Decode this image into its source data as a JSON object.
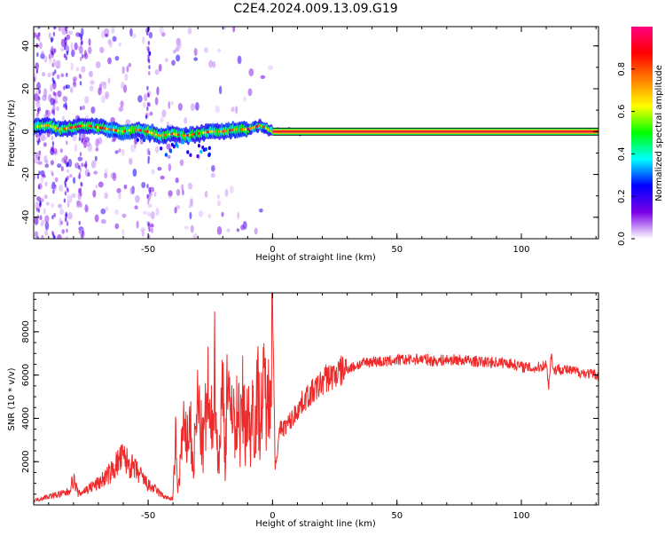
{
  "title": "C2E4.2024.009.13.09.G19",
  "colors": {
    "snr_line": "#ee2a2a",
    "axis": "#000000",
    "carrier_core": "#e0203a"
  },
  "chart_data": [
    {
      "type": "heatmap",
      "name": "spectrogram",
      "xlabel": "Height of straight line (km)",
      "ylabel": "Frequency (Hz)",
      "xlim": [
        -96,
        131
      ],
      "ylim": [
        -50,
        49
      ],
      "x_ticks": [
        -50,
        0,
        50,
        100
      ],
      "y_ticks": [
        -40,
        -20,
        0,
        20,
        40
      ],
      "colorbar": {
        "label": "Normalized spectral amplitude",
        "range": [
          0,
          1
        ],
        "ticks": [
          0.0,
          0.2,
          0.4,
          0.6,
          0.8
        ],
        "colormap": [
          "#ffffff",
          "#7a00e6",
          "#0000ff",
          "#00ffff",
          "#00ff00",
          "#ffff00",
          "#ff7f00",
          "#ff0000",
          "#ff0080"
        ]
      },
      "carrier_track": {
        "x": [
          -96,
          -90,
          -85,
          -80,
          -75,
          -70,
          -65,
          -60,
          -55,
          -50,
          -45,
          -40,
          -35,
          -30,
          -25,
          -20,
          -15,
          -10,
          -7,
          -5,
          -3,
          0,
          10,
          131
        ],
        "y": [
          2,
          3,
          1,
          2,
          3,
          2,
          1,
          0,
          1,
          0,
          -2,
          -1,
          -2,
          -1,
          0,
          0,
          1,
          1,
          2,
          3,
          2,
          0,
          0,
          0
        ]
      }
    },
    {
      "type": "line",
      "name": "snr",
      "xlabel": "Height of straight line (km)",
      "ylabel": "SNR (10 * v/v)",
      "xlim": [
        -96,
        131
      ],
      "ylim": [
        0,
        9800
      ],
      "x_ticks": [
        -50,
        0,
        50,
        100
      ],
      "y_ticks": [
        2000,
        4000,
        6000,
        8000
      ],
      "series": [
        {
          "x": [
            -96,
            -90,
            -85,
            -82,
            -80,
            -78,
            -75,
            -70,
            -65,
            -62,
            -60,
            -57,
            -55,
            -52,
            -50,
            -47,
            -45,
            -42,
            -40,
            -39,
            -38,
            -36,
            -35,
            -33,
            -32,
            -30,
            -28,
            -26,
            -25,
            -23,
            -22,
            -20,
            -19,
            -18,
            -17,
            -16,
            -15,
            -14,
            -13,
            -12,
            -11,
            -10,
            -9,
            -8,
            -7,
            -6,
            -5,
            -4,
            -3,
            -2,
            -1,
            0,
            0.5,
            1,
            2,
            3,
            5,
            8,
            10,
            13,
            15,
            18,
            20,
            22,
            25,
            28,
            30,
            33,
            35,
            40,
            45,
            50,
            55,
            60,
            65,
            70,
            75,
            80,
            85,
            90,
            95,
            100,
            105,
            108,
            110,
            111,
            112,
            113,
            115,
            120,
            125,
            131
          ],
          "y": [
            200,
            400,
            500,
            600,
            1200,
            500,
            700,
            1000,
            1500,
            2000,
            2200,
            1800,
            1600,
            1200,
            900,
            700,
            500,
            300,
            300,
            3000,
            600,
            3500,
            2800,
            3800,
            1500,
            4800,
            2500,
            5200,
            3000,
            6600,
            1500,
            5600,
            2000,
            7200,
            3000,
            6000,
            2500,
            5500,
            3000,
            4800,
            3500,
            4500,
            3000,
            5000,
            3600,
            5200,
            4000,
            4800,
            5500,
            4200,
            6500,
            9800,
            6000,
            1800,
            2500,
            3500,
            3600,
            4000,
            4400,
            4900,
            5100,
            5400,
            5700,
            5900,
            6000,
            6200,
            6300,
            6400,
            6500,
            6650,
            6600,
            6700,
            6700,
            6750,
            6650,
            6700,
            6700,
            6650,
            6600,
            6600,
            6550,
            6400,
            6300,
            6400,
            6500,
            5500,
            7000,
            6200,
            6300,
            6200,
            6100,
            6000
          ]
        }
      ]
    }
  ]
}
